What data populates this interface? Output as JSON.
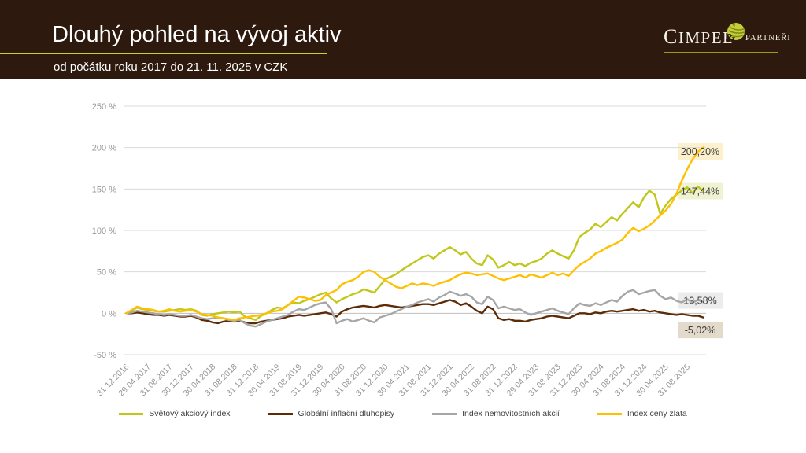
{
  "header": {
    "title": "Dlouhý pohled na vývoj aktiv",
    "subtitle": "od počátku roku 2017 do 21. 11. 2025 v CZK",
    "logo": {
      "name": "CIMPEL",
      "amp": "&",
      "suffix": "PARTNEŘI"
    }
  },
  "chart_data": {
    "type": "line",
    "title": "Dlouhý pohled na vývoj aktiv",
    "subtitle": "od počátku roku 2017 do 21. 11. 2025 v CZK",
    "grid": true,
    "legend_position": "bottom",
    "ylim": [
      -50,
      250
    ],
    "y_ticks": [
      {
        "value": 250,
        "label": "250 %"
      },
      {
        "value": 200,
        "label": "200 %"
      },
      {
        "value": 150,
        "label": "150 %"
      },
      {
        "value": 100,
        "label": "100 %"
      },
      {
        "value": 50,
        "label": "50 %"
      },
      {
        "value": 0,
        "label": "0 %"
      },
      {
        "value": -50,
        "label": "-50 %"
      }
    ],
    "months_per_tick": 4,
    "x_tick_labels": [
      "31.12.2016",
      "29.04.2017",
      "31.08.2017",
      "30.12.2017",
      "30.04.2018",
      "31.08.2018",
      "31.12.2018",
      "30.04.2019",
      "31.08.2019",
      "31.12.2019",
      "30.04.2020",
      "31.08.2020",
      "31.12.2020",
      "30.04.2021",
      "31.08.2021",
      "31.12.2021",
      "30.04.2022",
      "31.08.2022",
      "31.12.2022",
      "29.04.2023",
      "31.08.2023",
      "31.12.2023",
      "30.04.2024",
      "31.08.2024",
      "31.12.2024",
      "30.04.2025",
      "31.08.2025"
    ],
    "series": [
      {
        "id": "svetovy-akciovy-index",
        "name": "Světový akciový index",
        "color": "#BFC718",
        "end_label": "147,44%",
        "end_label_bg": "#EFF3D2",
        "end_label_offset_y": 0,
        "values": [
          0,
          3,
          7,
          5,
          4,
          3,
          2,
          2,
          3,
          4,
          5,
          4,
          5,
          3,
          -2,
          -3,
          -1,
          0,
          1,
          2,
          1,
          2,
          -4,
          -6,
          -8,
          -3,
          0,
          4,
          7,
          6,
          10,
          13,
          12,
          15,
          17,
          20,
          23,
          25,
          18,
          13,
          17,
          20,
          23,
          25,
          29,
          27,
          25,
          33,
          41,
          44,
          47,
          52,
          56,
          60,
          64,
          68,
          70,
          66,
          72,
          76,
          80,
          76,
          71,
          74,
          66,
          60,
          58,
          70,
          65,
          55,
          58,
          62,
          58,
          60,
          57,
          61,
          63,
          66,
          72,
          76,
          72,
          69,
          66,
          76,
          92,
          97,
          101,
          108,
          104,
          110,
          116,
          112,
          120,
          127,
          134,
          128,
          140,
          148,
          143,
          120,
          130,
          138,
          143,
          148,
          152,
          145,
          153,
          147.44
        ]
      },
      {
        "id": "globalni-inflacni-dluhopisy",
        "name": "Globální inflační dluhopisy",
        "color": "#5E2B07",
        "end_label": "-5,02%",
        "end_label_bg": "#E4DACC",
        "end_label_offset_y": 16,
        "values": [
          0,
          0,
          1,
          0,
          -1,
          -2,
          -2,
          -3,
          -2,
          -3,
          -4,
          -4,
          -3,
          -5,
          -8,
          -9,
          -11,
          -12,
          -10,
          -9,
          -10,
          -9,
          -11,
          -12,
          -12,
          -10,
          -9,
          -8,
          -7,
          -6,
          -4,
          -3,
          -2,
          -3,
          -2,
          -1,
          0,
          1,
          -1,
          -4,
          2,
          5,
          7,
          8,
          9,
          8,
          7,
          9,
          10,
          9,
          8,
          7,
          8,
          9,
          10,
          11,
          11,
          10,
          12,
          14,
          16,
          14,
          10,
          12,
          8,
          3,
          0,
          8,
          5,
          -6,
          -8,
          -7,
          -9,
          -9,
          -10,
          -8,
          -7,
          -6,
          -4,
          -3,
          -4,
          -5,
          -6,
          -3,
          0,
          0,
          -1,
          1,
          0,
          2,
          3,
          2,
          3,
          4,
          5,
          3,
          4,
          2,
          3,
          1,
          0,
          -1,
          -2,
          -1,
          -2,
          -3,
          -3,
          -5.02
        ]
      },
      {
        "id": "index-nemovitostnich-akcii",
        "name": "Index nemovitostních akcií",
        "color": "#A6A6A6",
        "end_label": "13,58%",
        "end_label_bg": "#ECECEC",
        "end_label_offset_y": -2,
        "values": [
          0,
          1,
          3,
          2,
          1,
          0,
          -1,
          -2,
          -1,
          -2,
          -3,
          -3,
          -2,
          -4,
          -6,
          -7,
          -6,
          -5,
          -6,
          -8,
          -9,
          -8,
          -12,
          -15,
          -16,
          -13,
          -10,
          -8,
          -6,
          -4,
          -2,
          2,
          5,
          4,
          7,
          10,
          12,
          13,
          5,
          -12,
          -9,
          -7,
          -10,
          -8,
          -6,
          -9,
          -11,
          -5,
          -3,
          -1,
          2,
          5,
          8,
          10,
          13,
          15,
          17,
          14,
          19,
          22,
          26,
          24,
          21,
          23,
          20,
          13,
          11,
          20,
          16,
          6,
          8,
          6,
          4,
          5,
          1,
          -2,
          0,
          2,
          4,
          6,
          3,
          1,
          -1,
          6,
          12,
          10,
          9,
          12,
          10,
          13,
          16,
          14,
          21,
          26,
          28,
          23,
          25,
          27,
          28,
          21,
          17,
          19,
          15,
          13,
          17,
          13,
          16,
          13.58
        ]
      },
      {
        "id": "index-ceny-zlata",
        "name": "Index ceny zlata",
        "color": "#FFC000",
        "end_label": "200,20%",
        "end_label_bg": "#FDF0CC",
        "end_label_offset_y": 5,
        "values": [
          0,
          4,
          8,
          6,
          5,
          4,
          2,
          3,
          5,
          3,
          2,
          3,
          4,
          2,
          -1,
          -2,
          -3,
          -5,
          -6,
          -7,
          -8,
          -6,
          -5,
          -4,
          -3,
          -2,
          0,
          2,
          3,
          5,
          10,
          15,
          20,
          19,
          17,
          15,
          16,
          22,
          25,
          28,
          35,
          38,
          40,
          44,
          50,
          52,
          50,
          44,
          40,
          36,
          32,
          30,
          33,
          36,
          34,
          36,
          35,
          33,
          36,
          38,
          40,
          44,
          47,
          49,
          48,
          46,
          47,
          48,
          45,
          42,
          40,
          42,
          44,
          46,
          43,
          47,
          45,
          43,
          46,
          49,
          46,
          48,
          45,
          52,
          58,
          62,
          66,
          72,
          75,
          79,
          82,
          85,
          89,
          97,
          103,
          99,
          102,
          106,
          112,
          118,
          124,
          132,
          144,
          160,
          174,
          186,
          195,
          200.2
        ]
      }
    ]
  }
}
